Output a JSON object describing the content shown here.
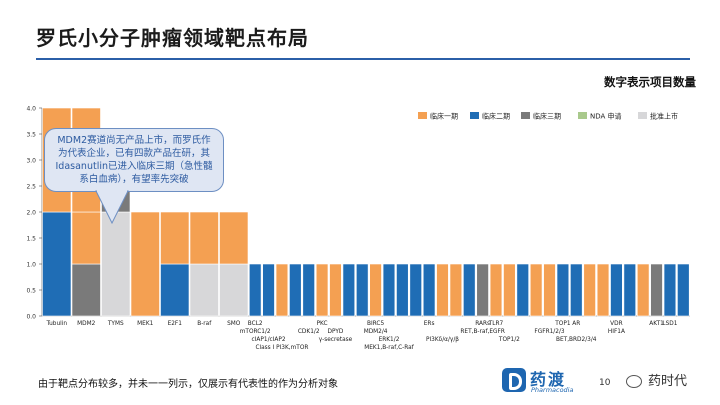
{
  "header": {
    "title": "罗氏小分子肿瘤领域靶点布局",
    "subtitle": "数字表示项目数量"
  },
  "callout": {
    "text": "MDM2赛道尚无产品上市，而罗氏作为代表企业，已有四款产品在研，其Idasanutlin已进入临床三期（急性髓系白血病），有望率先突破"
  },
  "footer": {
    "note": "由于靶点分布较多，并未一一列示，仅展示有代表性的作为分析对象",
    "logo_cn": "药渡",
    "logo_en": "Pharmacodia",
    "page_number": "10",
    "wechat_label": "药时代"
  },
  "colors": {
    "phase1": "#f4a052",
    "phase2": "#1f6db5",
    "phase3": "#7a7a7a",
    "nda": "#a9c98c",
    "approved": "#d7d7d9",
    "title_rule": "#2b5fa8"
  },
  "chart_data": {
    "type": "bar",
    "stacked": true,
    "ylim": [
      0,
      4
    ],
    "yticks": [
      "0.0",
      "0.5",
      "1.0",
      "1.5",
      "2.0",
      "2.5",
      "3.0",
      "3.5",
      "4.0"
    ],
    "grid": false,
    "legend_position": "top-right",
    "series": [
      {
        "name": "临床一期",
        "color": "#f4a052"
      },
      {
        "name": "临床二期",
        "color": "#1f6db5"
      },
      {
        "name": "临床三期",
        "color": "#7a7a7a"
      },
      {
        "name": "NDA 申请",
        "color": "#a9c98c"
      },
      {
        "name": "批准上市",
        "color": "#d7d7d9"
      }
    ],
    "categories": [
      {
        "segments": [
          [
            "临床二期",
            2
          ],
          [
            "临床一期",
            2
          ]
        ]
      },
      {
        "segments": [
          [
            "临床三期",
            1
          ],
          [
            "临床一期",
            1
          ],
          [
            "临床一期",
            2
          ]
        ]
      },
      {
        "segments": [
          [
            "批准上市",
            2
          ],
          [
            "临床三期",
            1
          ]
        ]
      },
      {
        "segments": [
          [
            "临床一期",
            2
          ]
        ]
      },
      {
        "segments": [
          [
            "临床二期",
            1
          ],
          [
            "临床一期",
            1
          ]
        ]
      },
      {
        "segments": [
          [
            "批准上市",
            1
          ],
          [
            "临床一期",
            1
          ]
        ]
      },
      {
        "segments": [
          [
            "批准上市",
            1
          ],
          [
            "临床一期",
            1
          ]
        ]
      },
      {
        "segments": [
          [
            "临床二期",
            1
          ]
        ]
      },
      {
        "segments": [
          [
            "临床二期",
            1
          ]
        ]
      },
      {
        "segments": [
          [
            "临床一期",
            1
          ]
        ]
      },
      {
        "segments": [
          [
            "临床二期",
            1
          ]
        ]
      },
      {
        "segments": [
          [
            "临床二期",
            1
          ]
        ]
      },
      {
        "segments": [
          [
            "临床一期",
            1
          ]
        ]
      },
      {
        "segments": [
          [
            "临床一期",
            1
          ]
        ]
      },
      {
        "segments": [
          [
            "临床二期",
            1
          ]
        ]
      },
      {
        "segments": [
          [
            "临床二期",
            1
          ]
        ]
      },
      {
        "segments": [
          [
            "临床一期",
            1
          ]
        ]
      },
      {
        "segments": [
          [
            "临床二期",
            1
          ]
        ]
      },
      {
        "segments": [
          [
            "临床二期",
            1
          ]
        ]
      },
      {
        "segments": [
          [
            "临床二期",
            1
          ]
        ]
      },
      {
        "segments": [
          [
            "临床二期",
            1
          ]
        ]
      },
      {
        "segments": [
          [
            "临床一期",
            1
          ]
        ]
      },
      {
        "segments": [
          [
            "临床一期",
            1
          ]
        ]
      },
      {
        "segments": [
          [
            "临床二期",
            1
          ]
        ]
      },
      {
        "segments": [
          [
            "临床三期",
            1
          ]
        ]
      },
      {
        "segments": [
          [
            "临床一期",
            1
          ]
        ]
      },
      {
        "segments": [
          [
            "临床一期",
            1
          ]
        ]
      },
      {
        "segments": [
          [
            "临床二期",
            1
          ]
        ]
      },
      {
        "segments": [
          [
            "临床一期",
            1
          ]
        ]
      },
      {
        "segments": [
          [
            "临床一期",
            1
          ]
        ]
      },
      {
        "segments": [
          [
            "临床二期",
            1
          ]
        ]
      },
      {
        "segments": [
          [
            "临床二期",
            1
          ]
        ]
      },
      {
        "segments": [
          [
            "临床一期",
            1
          ]
        ]
      },
      {
        "segments": [
          [
            "临床一期",
            1
          ]
        ]
      },
      {
        "segments": [
          [
            "临床二期",
            1
          ]
        ]
      },
      {
        "segments": [
          [
            "临床二期",
            1
          ]
        ]
      },
      {
        "segments": [
          [
            "临床一期",
            1
          ]
        ]
      },
      {
        "segments": [
          [
            "临床三期",
            1
          ]
        ]
      },
      {
        "segments": [
          [
            "临床二期",
            1
          ]
        ]
      },
      {
        "segments": [
          [
            "临床二期",
            1
          ]
        ]
      }
    ],
    "category_labels": [
      {
        "text": "Tubulin",
        "cat": 0,
        "row": 0
      },
      {
        "text": "MDM2",
        "cat": 1,
        "row": 0
      },
      {
        "text": "TYMS",
        "cat": 2,
        "row": 0
      },
      {
        "text": "MEK1",
        "cat": 3,
        "row": 0
      },
      {
        "text": "E2F1",
        "cat": 4,
        "row": 0
      },
      {
        "text": "B-raf",
        "cat": 5,
        "row": 0
      },
      {
        "text": "SMO",
        "cat": 6,
        "row": 0
      },
      {
        "text": "BCL2",
        "cat": 7,
        "row": 0
      },
      {
        "text": "mTORC1/2",
        "cat": 7,
        "row": 1
      },
      {
        "text": "cIAP1/cIAP2",
        "cat": 8,
        "row": 2
      },
      {
        "text": "Class I PI3K,mTOR",
        "cat": 9,
        "row": 3
      },
      {
        "text": "PKC",
        "cat": 12,
        "row": 0
      },
      {
        "text": "CDK1/2",
        "cat": 11,
        "row": 1
      },
      {
        "text": "DPYD",
        "cat": 13,
        "row": 1
      },
      {
        "text": "γ-secretase",
        "cat": 13,
        "row": 2
      },
      {
        "text": "BIRC5",
        "cat": 16,
        "row": 0
      },
      {
        "text": "MDM2/4",
        "cat": 16,
        "row": 1
      },
      {
        "text": "ERK1/2",
        "cat": 17,
        "row": 2
      },
      {
        "text": "MEK1,B-raf,C-Raf",
        "cat": 17,
        "row": 3
      },
      {
        "text": "ERs",
        "cat": 20,
        "row": 0
      },
      {
        "text": "PI3Kδ/α/γ/β",
        "cat": 21,
        "row": 2
      },
      {
        "text": "RARs",
        "cat": 24,
        "row": 0
      },
      {
        "text": "TLR7",
        "cat": 25,
        "row": 0
      },
      {
        "text": "RET,B-raf,EGFR",
        "cat": 24,
        "row": 1
      },
      {
        "text": "TOP1/2",
        "cat": 26,
        "row": 2
      },
      {
        "text": "TOP1",
        "cat": 30,
        "row": 0
      },
      {
        "text": "AR",
        "cat": 31,
        "row": 0
      },
      {
        "text": "FGFR1/2/3",
        "cat": 29,
        "row": 1
      },
      {
        "text": "BET,BRD2/3/4",
        "cat": 31,
        "row": 2
      },
      {
        "text": "VDR",
        "cat": 34,
        "row": 0
      },
      {
        "text": "HIF1A",
        "cat": 34,
        "row": 1
      },
      {
        "text": "AKT1",
        "cat": 37,
        "row": 0
      },
      {
        "text": "LSD1",
        "cat": 38,
        "row": 0
      }
    ]
  }
}
